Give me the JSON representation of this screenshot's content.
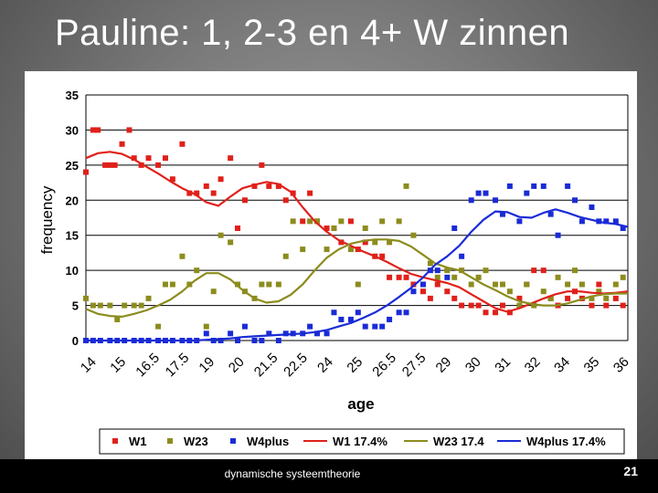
{
  "slide": {
    "title": "Pauline: 1, 2-3 en 4+ W zinnen",
    "footer": "dynamische systeemtheorie",
    "page_number": "21"
  },
  "colors": {
    "W1": "#e0201a",
    "W23": "#8c8c1e",
    "W4plus": "#1a2bd6"
  },
  "chart_data": {
    "type": "scatter",
    "title": "",
    "xlabel": "age",
    "ylabel": "frequency",
    "xlim": [
      14,
      36.5
    ],
    "ylim": [
      0,
      35
    ],
    "y_ticks": [
      0,
      5,
      10,
      15,
      20,
      25,
      30,
      35
    ],
    "x_tick_labels": [
      "14",
      "15",
      "16.5",
      "17.5",
      "19",
      "20",
      "21.5",
      "22.5",
      "24",
      "25",
      "26.5",
      "27.5",
      "29",
      "30",
      "31",
      "32",
      "34",
      "35",
      "36"
    ],
    "grid": true,
    "legend_position": "bottom",
    "series": [
      {
        "name": "W1",
        "kind": "points",
        "x": [
          14.0,
          14.3,
          14.5,
          14.8,
          15.0,
          15.2,
          15.5,
          15.8,
          16.0,
          16.3,
          16.6,
          17.0,
          17.3,
          17.6,
          18.0,
          18.3,
          18.6,
          19.0,
          19.3,
          19.6,
          20.0,
          20.3,
          20.6,
          21.0,
          21.3,
          21.6,
          22.0,
          22.3,
          22.6,
          23.0,
          23.3,
          23.6,
          24.0,
          24.3,
          24.6,
          25.0,
          25.3,
          25.6,
          26.0,
          26.3,
          26.6,
          27.0,
          27.3,
          27.6,
          28.0,
          28.3,
          28.6,
          29.0,
          29.3,
          29.6,
          30.0,
          30.3,
          30.6,
          31.0,
          31.3,
          31.6,
          32.0,
          32.3,
          32.6,
          33.0,
          33.3,
          33.6,
          34.0,
          34.3,
          34.6,
          35.0,
          35.3,
          35.6,
          36.0,
          36.3
        ],
        "y": [
          24,
          30,
          30,
          25,
          25,
          25,
          28,
          30,
          26,
          25,
          26,
          25,
          26,
          23,
          28,
          21,
          21,
          22,
          21,
          23,
          26,
          16,
          20,
          22,
          25,
          22,
          22,
          20,
          21,
          17,
          21,
          17,
          16,
          16,
          14,
          17,
          13,
          14,
          12,
          12,
          9,
          9,
          9,
          8,
          7,
          6,
          8,
          7,
          6,
          5,
          5,
          5,
          4,
          4,
          5,
          4,
          6,
          8,
          10,
          10,
          6,
          5,
          6,
          7,
          6,
          5,
          8,
          5,
          6,
          5
        ]
      },
      {
        "name": "W23",
        "kind": "points",
        "x": [
          14.0,
          14.3,
          14.6,
          15.0,
          15.3,
          15.6,
          16.0,
          16.3,
          16.6,
          17.0,
          17.3,
          17.6,
          18.0,
          18.3,
          18.6,
          19.0,
          19.3,
          19.6,
          20.0,
          20.3,
          20.6,
          21.0,
          21.3,
          21.6,
          22.0,
          22.3,
          22.6,
          23.0,
          23.3,
          23.6,
          24.0,
          24.3,
          24.6,
          25.0,
          25.3,
          25.6,
          26.0,
          26.3,
          26.6,
          27.0,
          27.3,
          27.6,
          28.0,
          28.3,
          28.6,
          29.0,
          29.3,
          29.6,
          30.0,
          30.3,
          30.6,
          31.0,
          31.3,
          31.6,
          32.0,
          32.3,
          32.6,
          33.0,
          33.3,
          33.6,
          34.0,
          34.3,
          34.6,
          35.0,
          35.3,
          35.6,
          36.0,
          36.3
        ],
        "y": [
          6,
          5,
          5,
          5,
          3,
          5,
          5,
          5,
          6,
          2,
          8,
          8,
          12,
          8,
          10,
          2,
          7,
          15,
          14,
          8,
          7,
          6,
          8,
          8,
          8,
          12,
          17,
          13,
          17,
          17,
          13,
          16,
          17,
          13,
          8,
          16,
          14,
          17,
          14,
          17,
          22,
          15,
          8,
          11,
          9,
          10,
          9,
          10,
          8,
          9,
          10,
          8,
          8,
          7,
          5,
          8,
          5,
          7,
          6,
          9,
          8,
          10,
          8,
          6,
          7,
          6,
          8,
          9
        ]
      },
      {
        "name": "W4plus",
        "kind": "points",
        "x": [
          14.0,
          14.3,
          14.6,
          15.0,
          15.3,
          15.6,
          16.0,
          16.3,
          16.6,
          17.0,
          17.3,
          17.6,
          18.0,
          18.3,
          18.6,
          19.0,
          19.3,
          19.6,
          20.0,
          20.3,
          20.6,
          21.0,
          21.3,
          21.6,
          22.0,
          22.3,
          22.6,
          23.0,
          23.3,
          23.6,
          24.0,
          24.3,
          24.6,
          25.0,
          25.3,
          25.6,
          26.0,
          26.3,
          26.6,
          27.0,
          27.3,
          27.6,
          28.0,
          28.3,
          28.6,
          29.0,
          29.3,
          29.6,
          30.0,
          30.3,
          30.6,
          31.0,
          31.3,
          31.6,
          32.0,
          32.3,
          32.6,
          33.0,
          33.3,
          33.6,
          34.0,
          34.3,
          34.6,
          35.0,
          35.3,
          35.6,
          36.0,
          36.3
        ],
        "y": [
          0,
          0,
          0,
          0,
          0,
          0,
          0,
          0,
          0,
          0,
          0,
          0,
          0,
          0,
          0,
          1,
          0,
          0,
          1,
          0,
          2,
          0,
          0,
          1,
          0,
          1,
          1,
          1,
          2,
          1,
          1,
          4,
          3,
          3,
          4,
          2,
          2,
          2,
          3,
          4,
          4,
          7,
          8,
          10,
          10,
          9,
          16,
          12,
          20,
          21,
          21,
          20,
          18,
          22,
          17,
          21,
          22,
          22,
          18,
          15,
          22,
          20,
          17,
          19,
          17,
          17,
          17,
          16
        ]
      },
      {
        "name": "W1 17.4%",
        "kind": "curve",
        "x": [
          14.0,
          14.5,
          15.0,
          15.5,
          16.0,
          16.5,
          17.0,
          17.5,
          18.0,
          18.5,
          19.0,
          19.5,
          20.0,
          20.5,
          21.0,
          21.5,
          22.0,
          22.5,
          23.0,
          23.5,
          24.0,
          24.5,
          25.0,
          25.5,
          26.0,
          26.5,
          27.0,
          27.5,
          28.0,
          28.5,
          29.0,
          29.5,
          30.0,
          30.5,
          31.0,
          31.5,
          32.0,
          32.5,
          33.0,
          33.5,
          34.0,
          34.5,
          35.0,
          35.5,
          36.0,
          36.5
        ],
        "y": [
          26.0,
          26.7,
          26.9,
          26.6,
          25.8,
          24.8,
          23.8,
          22.7,
          21.7,
          20.9,
          19.7,
          19.2,
          20.5,
          21.7,
          22.2,
          22.6,
          22.3,
          21.2,
          19.0,
          17.0,
          15.5,
          14.3,
          13.5,
          12.7,
          12.0,
          11.2,
          10.3,
          9.5,
          9.0,
          8.6,
          8.2,
          7.6,
          6.6,
          5.6,
          4.6,
          4.1,
          4.6,
          5.3,
          6.0,
          6.6,
          7.0,
          7.0,
          6.8,
          6.7,
          6.8,
          7.0
        ]
      },
      {
        "name": "W23 17.4",
        "kind": "curve",
        "x": [
          14.0,
          14.5,
          15.0,
          15.5,
          16.0,
          16.5,
          17.0,
          17.5,
          18.0,
          18.5,
          19.0,
          19.5,
          20.0,
          20.5,
          21.0,
          21.5,
          22.0,
          22.5,
          23.0,
          23.5,
          24.0,
          24.5,
          25.0,
          25.5,
          26.0,
          26.5,
          27.0,
          27.5,
          28.0,
          28.5,
          29.0,
          29.5,
          30.0,
          30.5,
          31.0,
          31.5,
          32.0,
          32.5,
          33.0,
          33.5,
          34.0,
          34.5,
          35.0,
          35.5,
          36.0,
          36.5
        ],
        "y": [
          4.5,
          3.8,
          3.5,
          3.4,
          3.8,
          4.3,
          5.0,
          5.8,
          7.0,
          8.5,
          9.6,
          9.6,
          8.7,
          7.2,
          6.0,
          5.4,
          5.6,
          6.5,
          8.0,
          10.0,
          11.8,
          13.0,
          13.8,
          14.2,
          14.4,
          14.4,
          14.2,
          13.4,
          12.2,
          11.0,
          10.4,
          10.0,
          9.0,
          8.0,
          7.2,
          6.3,
          5.6,
          5.2,
          5.0,
          5.0,
          5.3,
          5.8,
          6.3,
          6.6,
          6.7,
          6.7
        ]
      },
      {
        "name": "W4plus 17.4%",
        "kind": "curve",
        "x": [
          14.0,
          14.5,
          15.0,
          15.5,
          16.0,
          16.5,
          17.0,
          17.5,
          18.0,
          18.5,
          19.0,
          19.5,
          20.0,
          20.5,
          21.0,
          21.5,
          22.0,
          22.5,
          23.0,
          23.5,
          24.0,
          24.5,
          25.0,
          25.5,
          26.0,
          26.5,
          27.0,
          27.5,
          28.0,
          28.5,
          29.0,
          29.5,
          30.0,
          30.5,
          31.0,
          31.5,
          32.0,
          32.5,
          33.0,
          33.5,
          34.0,
          34.5,
          35.0,
          35.5,
          36.0,
          36.5
        ],
        "y": [
          0.0,
          0.0,
          0.0,
          0.0,
          0.0,
          0.0,
          0.0,
          0.0,
          0.0,
          0.0,
          0.1,
          0.2,
          0.3,
          0.5,
          0.6,
          0.7,
          0.8,
          0.9,
          1.0,
          1.2,
          1.5,
          2.0,
          2.5,
          3.2,
          4.0,
          5.0,
          6.2,
          7.5,
          9.0,
          10.8,
          12.0,
          13.5,
          15.5,
          17.2,
          18.4,
          18.3,
          17.6,
          17.5,
          18.2,
          18.7,
          18.2,
          17.6,
          17.2,
          16.8,
          16.6,
          16.2
        ]
      }
    ]
  }
}
